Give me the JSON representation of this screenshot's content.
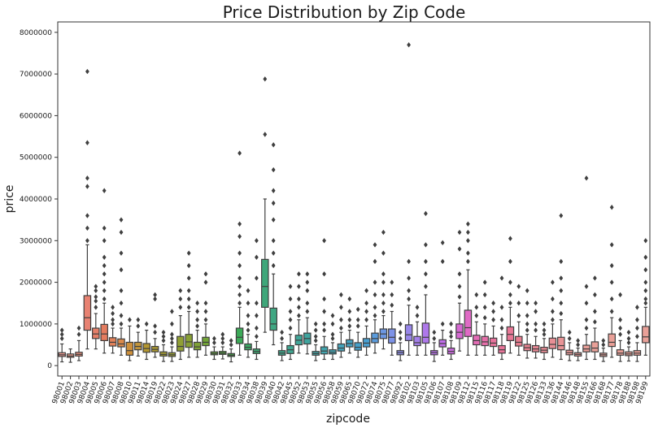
{
  "chart_data": {
    "type": "boxplot",
    "title": "Price Distribution by Zip Code",
    "xlabel": "zipcode",
    "ylabel": "price",
    "ylim": [
      -250000,
      8250000
    ],
    "yticks": [
      0,
      1000000,
      2000000,
      3000000,
      4000000,
      5000000,
      6000000,
      7000000,
      8000000
    ],
    "ytick_labels": [
      "0",
      "1000000",
      "2000000",
      "3000000",
      "4000000",
      "5000000",
      "6000000",
      "7000000",
      "8000000"
    ],
    "grid": false,
    "legend": "none",
    "categories": [
      "98001",
      "98002",
      "98003",
      "98004",
      "98005",
      "98006",
      "98007",
      "98008",
      "98010",
      "98011",
      "98014",
      "98019",
      "98022",
      "98023",
      "98024",
      "98027",
      "98028",
      "98029",
      "98030",
      "98031",
      "98032",
      "98033",
      "98034",
      "98038",
      "98039",
      "98040",
      "98042",
      "98045",
      "98052",
      "98053",
      "98055",
      "98056",
      "98058",
      "98059",
      "98065",
      "98070",
      "98072",
      "98074",
      "98075",
      "98077",
      "98092",
      "98102",
      "98103",
      "98105",
      "98106",
      "98107",
      "98108",
      "98109",
      "98112",
      "98115",
      "98116",
      "98117",
      "98118",
      "98119",
      "98122",
      "98125",
      "98126",
      "98133",
      "98136",
      "98144",
      "98146",
      "98148",
      "98155",
      "98166",
      "98168",
      "98177",
      "98178",
      "98188",
      "98198",
      "98199"
    ],
    "colors": [
      "#e9978f",
      "#e8998a",
      "#e88d7b",
      "#e88272",
      "#e57f68",
      "#e47c5f",
      "#e2825a",
      "#dc8a4a",
      "#cd8f3a",
      "#c2953c",
      "#b49731",
      "#ad9a31",
      "#a39c32",
      "#999d33",
      "#909f34",
      "#88a035",
      "#7fa236",
      "#72a437",
      "#63a639",
      "#50a83c",
      "#3ca93f",
      "#3ba957",
      "#3ca865",
      "#3da871",
      "#3ea77a",
      "#3fa782",
      "#3fa68a",
      "#3fa691",
      "#40a699",
      "#40a59f",
      "#41a5a6",
      "#41a4ad",
      "#42a4b3",
      "#43a3bb",
      "#44a2c2",
      "#45a1cb",
      "#48a0d2",
      "#5a9cdd",
      "#6c97e3",
      "#7d92e7",
      "#8b8ce8",
      "#9886e9",
      "#a47fea",
      "#ae78ea",
      "#b872ea",
      "#c16deb",
      "#cc6ae0",
      "#d669d2",
      "#df6ac5",
      "#e46cb6",
      "#e66fa9",
      "#e8729c",
      "#e9759a",
      "#e87896",
      "#e77c8f",
      "#e88290",
      "#e78693",
      "#e88b94",
      "#e88f95",
      "#e89496",
      "#e89896",
      "#e99b97",
      "#e99f98",
      "#e9a098",
      "#e9a098",
      "#e9a098",
      "#e9a098",
      "#e9a098",
      "#e9a098",
      "#e9a098"
    ],
    "boxes": [
      {
        "q1": 220000,
        "median": 260000,
        "q3": 310000,
        "lo": 90000,
        "hi": 520000,
        "outliers": [
          650000,
          750000,
          850000
        ]
      },
      {
        "q1": 200000,
        "median": 230000,
        "q3": 280000,
        "lo": 80000,
        "hi": 400000,
        "outliers": []
      },
      {
        "q1": 230000,
        "median": 270000,
        "q3": 320000,
        "lo": 120000,
        "hi": 600000,
        "outliers": [
          750000,
          900000
        ]
      },
      {
        "q1": 850000,
        "median": 1150000,
        "q3": 1680000,
        "lo": 400000,
        "hi": 2900000,
        "outliers": [
          3000000,
          3300000,
          3600000,
          4300000,
          4500000,
          5350000,
          7060000
        ]
      },
      {
        "q1": 650000,
        "median": 760000,
        "q3": 900000,
        "lo": 400000,
        "hi": 1250000,
        "outliers": [
          1400000,
          1550000,
          1650000,
          1800000,
          1900000
        ]
      },
      {
        "q1": 600000,
        "median": 760000,
        "q3": 990000,
        "lo": 300000,
        "hi": 1500000,
        "outliers": [
          1600000,
          1800000,
          2000000,
          2200000,
          2400000,
          2600000,
          3000000,
          3300000,
          4200000
        ]
      },
      {
        "q1": 470000,
        "median": 560000,
        "q3": 670000,
        "lo": 300000,
        "hi": 900000,
        "outliers": [
          1000000,
          1100000,
          1250000,
          1400000
        ]
      },
      {
        "q1": 450000,
        "median": 520000,
        "q3": 640000,
        "lo": 250000,
        "hi": 900000,
        "outliers": [
          1000000,
          1200000,
          1500000,
          1800000,
          2300000,
          2700000,
          3200000,
          3500000
        ]
      },
      {
        "q1": 250000,
        "median": 360000,
        "q3": 560000,
        "lo": 120000,
        "hi": 950000,
        "outliers": [
          1100000
        ]
      },
      {
        "q1": 380000,
        "median": 460000,
        "q3": 560000,
        "lo": 230000,
        "hi": 800000,
        "outliers": [
          950000,
          1100000
        ]
      },
      {
        "q1": 320000,
        "median": 410000,
        "q3": 530000,
        "lo": 150000,
        "hi": 850000,
        "outliers": [
          1000000
        ]
      },
      {
        "q1": 330000,
        "median": 390000,
        "q3": 460000,
        "lo": 200000,
        "hi": 650000,
        "outliers": [
          800000,
          950000,
          1600000,
          1700000
        ]
      },
      {
        "q1": 230000,
        "median": 270000,
        "q3": 330000,
        "lo": 100000,
        "hi": 500000,
        "outliers": [
          600000,
          700000,
          800000
        ]
      },
      {
        "q1": 220000,
        "median": 260000,
        "q3": 310000,
        "lo": 100000,
        "hi": 450000,
        "outliers": [
          550000,
          650000,
          750000,
          1000000,
          1300000
        ]
      },
      {
        "q1": 350000,
        "median": 460000,
        "q3": 700000,
        "lo": 150000,
        "hi": 1200000,
        "outliers": [
          1400000,
          1600000,
          1800000
        ]
      },
      {
        "q1": 440000,
        "median": 570000,
        "q3": 750000,
        "lo": 200000,
        "hi": 1300000,
        "outliers": [
          1400000,
          1600000,
          1800000,
          2100000,
          2400000,
          2700000
        ]
      },
      {
        "q1": 380000,
        "median": 450000,
        "q3": 560000,
        "lo": 200000,
        "hi": 850000,
        "outliers": [
          950000,
          1100000,
          1300000,
          1500000
        ]
      },
      {
        "q1": 480000,
        "median": 560000,
        "q3": 680000,
        "lo": 250000,
        "hi": 1000000,
        "outliers": [
          1100000,
          1300000,
          1500000,
          2000000,
          2200000
        ]
      },
      {
        "q1": 260000,
        "median": 290000,
        "q3": 330000,
        "lo": 150000,
        "hi": 450000,
        "outliers": [
          550000,
          650000
        ]
      },
      {
        "q1": 270000,
        "median": 300000,
        "q3": 340000,
        "lo": 160000,
        "hi": 450000,
        "outliers": [
          550000,
          650000,
          750000
        ]
      },
      {
        "q1": 220000,
        "median": 250000,
        "q3": 290000,
        "lo": 90000,
        "hi": 400000,
        "outliers": [
          500000,
          600000
        ]
      },
      {
        "q1": 530000,
        "median": 680000,
        "q3": 900000,
        "lo": 250000,
        "hi": 1400000,
        "outliers": [
          1500000,
          1700000,
          1900000,
          2100000,
          2400000,
          2700000,
          3100000,
          3400000,
          5100000
        ]
      },
      {
        "q1": 380000,
        "median": 440000,
        "q3": 520000,
        "lo": 200000,
        "hi": 750000,
        "outliers": [
          850000,
          1000000,
          1200000,
          1500000,
          1800000
        ]
      },
      {
        "q1": 290000,
        "median": 340000,
        "q3": 400000,
        "lo": 150000,
        "hi": 580000,
        "outliers": [
          700000,
          900000,
          1200000,
          1500000,
          2100000,
          2600000,
          3000000
        ]
      },
      {
        "q1": 1400000,
        "median": 1900000,
        "q3": 2550000,
        "lo": 800000,
        "hi": 4000000,
        "outliers": [
          5550000,
          6880000
        ]
      },
      {
        "q1": 850000,
        "median": 1000000,
        "q3": 1380000,
        "lo": 500000,
        "hi": 2200000,
        "outliers": [
          2400000,
          2700000,
          3000000,
          3500000,
          3900000,
          4200000,
          4700000,
          5300000
        ]
      },
      {
        "q1": 250000,
        "median": 300000,
        "q3": 360000,
        "lo": 120000,
        "hi": 550000,
        "outliers": [
          650000,
          800000
        ]
      },
      {
        "q1": 290000,
        "median": 380000,
        "q3": 480000,
        "lo": 150000,
        "hi": 750000,
        "outliers": [
          900000,
          1100000,
          1300000,
          1600000,
          1900000
        ]
      },
      {
        "q1": 500000,
        "median": 610000,
        "q3": 730000,
        "lo": 300000,
        "hi": 1100000,
        "outliers": [
          1200000,
          1400000,
          1600000,
          1900000,
          2200000
        ]
      },
      {
        "q1": 520000,
        "median": 650000,
        "q3": 780000,
        "lo": 280000,
        "hi": 1150000,
        "outliers": [
          1300000,
          1500000,
          1800000,
          2000000,
          2200000
        ]
      },
      {
        "q1": 250000,
        "median": 290000,
        "q3": 340000,
        "lo": 120000,
        "hi": 500000,
        "outliers": [
          600000,
          700000,
          850000,
          1000000
        ]
      },
      {
        "q1": 280000,
        "median": 350000,
        "q3": 450000,
        "lo": 150000,
        "hi": 700000,
        "outliers": [
          850000,
          1000000,
          1300000,
          1600000,
          2200000,
          3000000
        ]
      },
      {
        "q1": 280000,
        "median": 320000,
        "q3": 380000,
        "lo": 150000,
        "hi": 550000,
        "outliers": [
          650000,
          750000,
          1000000,
          1200000
        ]
      },
      {
        "q1": 350000,
        "median": 420000,
        "q3": 520000,
        "lo": 200000,
        "hi": 800000,
        "outliers": [
          900000,
          1100000,
          1400000,
          1700000
        ]
      },
      {
        "q1": 450000,
        "median": 530000,
        "q3": 620000,
        "lo": 300000,
        "hi": 850000,
        "outliers": [
          950000,
          1100000,
          1300000,
          1600000
        ]
      },
      {
        "q1": 370000,
        "median": 440000,
        "q3": 550000,
        "lo": 200000,
        "hi": 800000,
        "outliers": [
          950000,
          1100000,
          1350000
        ]
      },
      {
        "q1": 450000,
        "median": 540000,
        "q3": 650000,
        "lo": 250000,
        "hi": 950000,
        "outliers": [
          1100000,
          1300000,
          1500000,
          1800000
        ]
      },
      {
        "q1": 550000,
        "median": 650000,
        "q3": 780000,
        "lo": 300000,
        "hi": 1100000,
        "outliers": [
          1200000,
          1400000,
          1700000,
          2000000,
          2500000,
          2900000
        ]
      },
      {
        "q1": 650000,
        "median": 760000,
        "q3": 880000,
        "lo": 400000,
        "hi": 1200000,
        "outliers": [
          1300000,
          1500000,
          1700000,
          2000000,
          2200000,
          2700000,
          3200000
        ]
      },
      {
        "q1": 540000,
        "median": 680000,
        "q3": 880000,
        "lo": 250000,
        "hi": 1300000,
        "outliers": [
          1450000,
          1700000,
          2000000
        ]
      },
      {
        "q1": 260000,
        "median": 310000,
        "q3": 360000,
        "lo": 120000,
        "hi": 550000,
        "outliers": [
          650000,
          800000,
          1000000
        ]
      },
      {
        "q1": 600000,
        "median": 740000,
        "q3": 980000,
        "lo": 250000,
        "hi": 1450000,
        "outliers": [
          1600000,
          1800000,
          2100000,
          2500000,
          7700000
        ]
      },
      {
        "q1": 480000,
        "median": 550000,
        "q3": 700000,
        "lo": 250000,
        "hi": 1050000,
        "outliers": [
          1200000,
          1400000
        ]
      },
      {
        "q1": 540000,
        "median": 680000,
        "q3": 1020000,
        "lo": 250000,
        "hi": 1700000,
        "outliers": [
          1900000,
          2200000,
          2500000,
          2900000,
          3650000
        ]
      },
      {
        "q1": 260000,
        "median": 310000,
        "q3": 360000,
        "lo": 100000,
        "hi": 550000,
        "outliers": [
          650000,
          800000
        ]
      },
      {
        "q1": 450000,
        "median": 530000,
        "q3": 620000,
        "lo": 250000,
        "hi": 850000,
        "outliers": [
          1000000,
          2500000,
          2950000
        ]
      },
      {
        "q1": 280000,
        "median": 340000,
        "q3": 420000,
        "lo": 150000,
        "hi": 600000,
        "outliers": [
          700000,
          800000,
          1000000
        ]
      },
      {
        "q1": 650000,
        "median": 800000,
        "q3": 1000000,
        "lo": 350000,
        "hi": 1500000,
        "outliers": [
          1650000,
          1900000,
          2200000,
          2800000,
          3200000
        ]
      },
      {
        "q1": 700000,
        "median": 910000,
        "q3": 1330000,
        "lo": 250000,
        "hi": 2300000,
        "outliers": [
          2500000,
          2700000,
          3000000,
          3200000,
          3400000
        ]
      },
      {
        "q1": 500000,
        "median": 600000,
        "q3": 730000,
        "lo": 250000,
        "hi": 1050000,
        "outliers": [
          1200000,
          1400000,
          1700000
        ]
      },
      {
        "q1": 480000,
        "median": 570000,
        "q3": 700000,
        "lo": 250000,
        "hi": 1000000,
        "outliers": [
          1150000,
          1400000,
          1700000,
          2000000
        ]
      },
      {
        "q1": 460000,
        "median": 540000,
        "q3": 660000,
        "lo": 250000,
        "hi": 950000,
        "outliers": [
          1100000,
          1300000,
          1500000
        ]
      },
      {
        "q1": 300000,
        "median": 380000,
        "q3": 480000,
        "lo": 150000,
        "hi": 750000,
        "outliers": [
          900000,
          1100000,
          1400000,
          2100000
        ]
      },
      {
        "q1": 600000,
        "median": 750000,
        "q3": 930000,
        "lo": 300000,
        "hi": 1400000,
        "outliers": [
          1500000,
          1700000,
          2000000,
          2500000,
          3050000
        ]
      },
      {
        "q1": 470000,
        "median": 560000,
        "q3": 700000,
        "lo": 250000,
        "hi": 1050000,
        "outliers": [
          1200000,
          1500000,
          1900000
        ]
      },
      {
        "q1": 360000,
        "median": 430000,
        "q3": 510000,
        "lo": 180000,
        "hi": 750000,
        "outliers": [
          850000,
          1000000,
          1200000,
          1500000,
          1800000
        ]
      },
      {
        "q1": 330000,
        "median": 400000,
        "q3": 480000,
        "lo": 180000,
        "hi": 700000,
        "outliers": [
          850000,
          1000000,
          1300000,
          1500000
        ]
      },
      {
        "q1": 310000,
        "median": 370000,
        "q3": 440000,
        "lo": 150000,
        "hi": 650000,
        "outliers": [
          750000,
          850000,
          1000000
        ]
      },
      {
        "q1": 410000,
        "median": 510000,
        "q3": 660000,
        "lo": 200000,
        "hi": 1000000,
        "outliers": [
          1100000,
          1300000,
          1600000,
          2000000
        ]
      },
      {
        "q1": 380000,
        "median": 480000,
        "q3": 680000,
        "lo": 150000,
        "hi": 1100000,
        "outliers": [
          1250000,
          1500000,
          1800000,
          2100000,
          2500000,
          3600000
        ]
      },
      {
        "q1": 260000,
        "median": 310000,
        "q3": 370000,
        "lo": 120000,
        "hi": 550000,
        "outliers": [
          650000,
          800000
        ]
      },
      {
        "q1": 230000,
        "median": 270000,
        "q3": 310000,
        "lo": 120000,
        "hi": 420000,
        "outliers": [
          500000,
          600000
        ]
      },
      {
        "q1": 330000,
        "median": 400000,
        "q3": 490000,
        "lo": 150000,
        "hi": 750000,
        "outliers": [
          900000,
          1100000,
          1500000,
          1900000,
          4500000
        ]
      },
      {
        "q1": 330000,
        "median": 420000,
        "q3": 570000,
        "lo": 150000,
        "hi": 900000,
        "outliers": [
          1050000,
          1300000,
          1700000,
          2100000
        ]
      },
      {
        "q1": 220000,
        "median": 260000,
        "q3": 300000,
        "lo": 100000,
        "hi": 420000,
        "outliers": [
          500000,
          600000
        ]
      },
      {
        "q1": 460000,
        "median": 560000,
        "q3": 760000,
        "lo": 200000,
        "hi": 1150000,
        "outliers": [
          1300000,
          1600000,
          2000000,
          2400000,
          2900000,
          3800000
        ]
      },
      {
        "q1": 250000,
        "median": 300000,
        "q3": 380000,
        "lo": 100000,
        "hi": 600000,
        "outliers": [
          750000,
          900000,
          1100000,
          1700000
        ]
      },
      {
        "q1": 240000,
        "median": 280000,
        "q3": 330000,
        "lo": 110000,
        "hi": 450000,
        "outliers": [
          550000,
          650000,
          800000
        ]
      },
      {
        "q1": 250000,
        "median": 300000,
        "q3": 360000,
        "lo": 100000,
        "hi": 550000,
        "outliers": [
          700000,
          900000,
          1100000,
          1400000
        ]
      },
      {
        "q1": 550000,
        "median": 690000,
        "q3": 940000,
        "lo": 250000,
        "hi": 1400000,
        "outliers": [
          1500000,
          1600000,
          1800000,
          2000000,
          2300000,
          2600000,
          3000000
        ]
      }
    ]
  }
}
